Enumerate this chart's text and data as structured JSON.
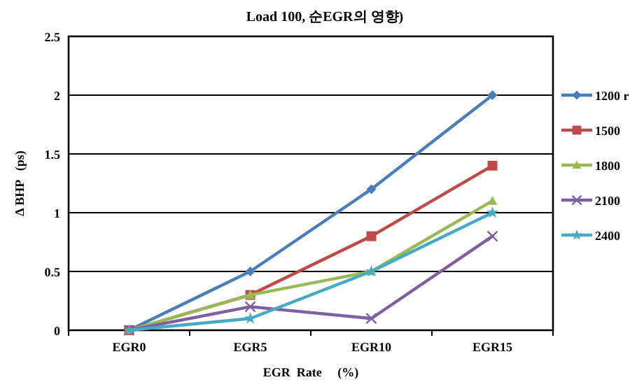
{
  "chart_data": {
    "type": "line",
    "title": "Load 100, 순EGR의  영향)",
    "xlabel": "EGR  Rate     (%)",
    "ylabel": "Δ BHP   (ps)",
    "categories": [
      "EGR0",
      "EGR5",
      "EGR10",
      "EGR15"
    ],
    "series": [
      {
        "name": "1200 r",
        "color": "#4a7ebb",
        "marker": "diamond",
        "values": [
          0,
          0.5,
          1.2,
          2.0
        ]
      },
      {
        "name": "1500",
        "color": "#be4b48",
        "marker": "square",
        "values": [
          0,
          0.3,
          0.8,
          1.4
        ]
      },
      {
        "name": "1800",
        "color": "#98b954",
        "marker": "triangle",
        "values": [
          0,
          0.3,
          0.5,
          1.1
        ]
      },
      {
        "name": "2100",
        "color": "#7d60a0",
        "marker": "cross",
        "values": [
          0,
          0.2,
          0.1,
          0.8
        ]
      },
      {
        "name": "2400",
        "color": "#46aac5",
        "marker": "star",
        "values": [
          0,
          0.1,
          0.5,
          1.0
        ]
      }
    ],
    "ylim": [
      0,
      2.5
    ],
    "yticks": [
      {
        "value": 0,
        "label": "0"
      },
      0.5,
      {
        "value": 1,
        "label": "1"
      },
      1.5,
      {
        "value": 2,
        "label": "2"
      },
      2.5
    ],
    "grid": "y",
    "legend": "right"
  }
}
